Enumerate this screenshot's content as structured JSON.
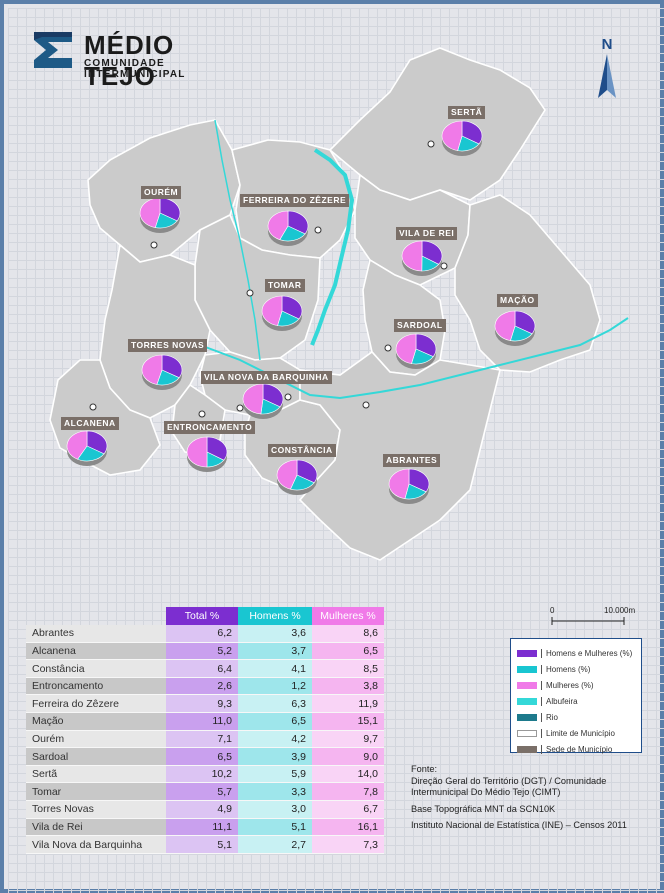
{
  "header": {
    "logo_title": "MÉDIO TEJO",
    "logo_subtitle": "COMUNIDADE INTERMUNICIPAL",
    "north_label": "N"
  },
  "colors": {
    "total": "#7c2ed0",
    "homens": "#19c6d1",
    "mulheres": "#f07ae8",
    "albufeira": "#34d8d8",
    "rio": "#1d7a8c",
    "municipio_fill": "#cbcbcb",
    "municipio_border": "#ffffff",
    "label_bg": "#7a6f68",
    "frame": "#5b7fa9"
  },
  "map_labels": {
    "serta": "SERTÃ",
    "ourem": "OURÉM",
    "ferreira": "FERREIRA DO ZÊZERE",
    "vila_de_rei": "VILA DE REI",
    "tomar": "TOMAR",
    "macao": "MAÇÃO",
    "sardoal": "SARDOAL",
    "torres_novas": "TORRES NOVAS",
    "vila_nova": "VILA NOVA DA BARQUINHA",
    "alcanena": "ALCANENA",
    "entroncamento": "ENTRONCAMENTO",
    "constancia": "CONSTÂNCIA",
    "abrantes": "ABRANTES"
  },
  "table": {
    "headers": {
      "total": "Total %",
      "homens": "Homens %",
      "mulheres": "Mulheres %"
    },
    "rows": [
      {
        "name": "Abrantes",
        "total": "6,2",
        "homens": "3,6",
        "mulheres": "8,6"
      },
      {
        "name": "Alcanena",
        "total": "5,2",
        "homens": "3,7",
        "mulheres": "6,5"
      },
      {
        "name": "Constância",
        "total": "6,4",
        "homens": "4,1",
        "mulheres": "8,5"
      },
      {
        "name": "Entroncamento",
        "total": "2,6",
        "homens": "1,2",
        "mulheres": "3,8"
      },
      {
        "name": "Ferreira do Zêzere",
        "total": "9,3",
        "homens": "6,3",
        "mulheres": "11,9"
      },
      {
        "name": "Mação",
        "total": "11,0",
        "homens": "6,5",
        "mulheres": "15,1"
      },
      {
        "name": "Ourém",
        "total": "7,1",
        "homens": "4,2",
        "mulheres": "9,7"
      },
      {
        "name": "Sardoal",
        "total": "6,5",
        "homens": "3,9",
        "mulheres": "9,0"
      },
      {
        "name": "Sertã",
        "total": "10,2",
        "homens": "5,9",
        "mulheres": "14,0"
      },
      {
        "name": "Tomar",
        "total": "5,7",
        "homens": "3,3",
        "mulheres": "7,8"
      },
      {
        "name": "Torres Novas",
        "total": "4,9",
        "homens": "3,0",
        "mulheres": "6,7"
      },
      {
        "name": "Vila de Rei",
        "total": "11,1",
        "homens": "5,1",
        "mulheres": "16,1"
      },
      {
        "name": "Vila Nova da Barquinha",
        "total": "5,1",
        "homens": "2,7",
        "mulheres": "7,3"
      }
    ]
  },
  "scale": {
    "zero": "0",
    "max": "10.000m"
  },
  "legend": {
    "total": "Homens e Mulheres (%)",
    "homens": "Homens (%)",
    "mulheres": "Mulheres (%)",
    "albufeira": "Albufeira",
    "rio": "Rio",
    "limite": "Limite de Município",
    "sede": "Sede de Município"
  },
  "sources": {
    "fonte_label": "Fonte:",
    "line1": "Direção Geral do Território (DGT) / Comunidade Intermunicipal Do Médio Tejo (CIMT)",
    "line2": "Base Topográfica MNT da SCN10K",
    "line3": "Instituto Nacional de Estatística (INE) – Censos 2011"
  }
}
